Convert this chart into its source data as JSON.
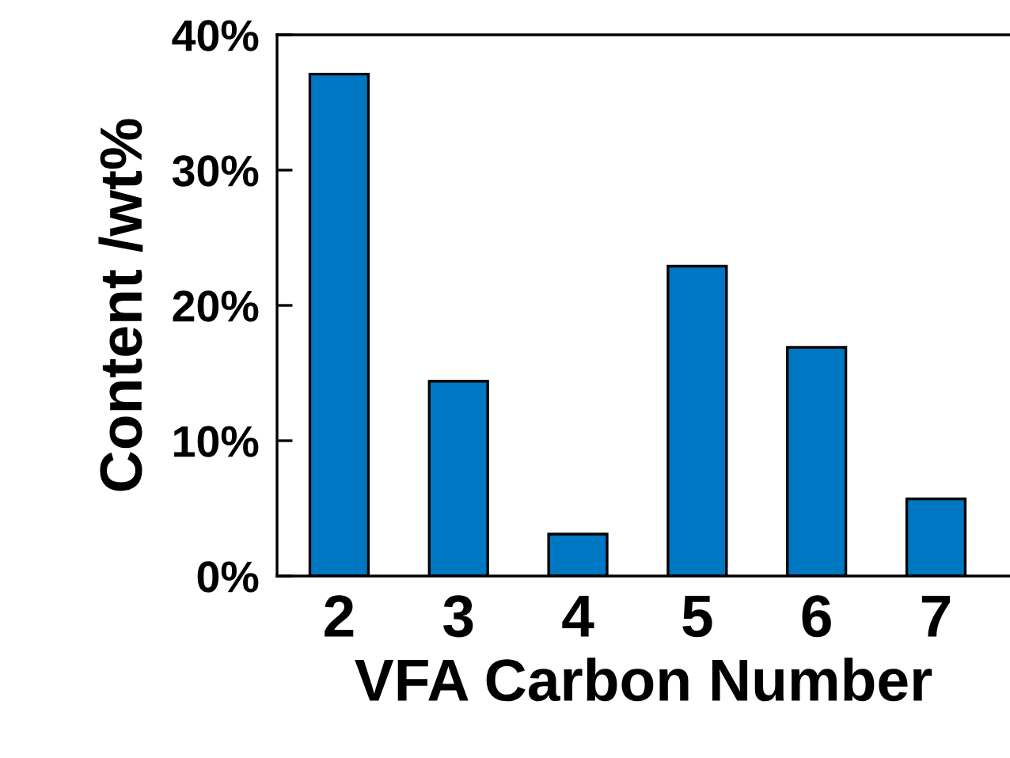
{
  "chart_data": {
    "type": "bar",
    "xlabel": "VFA Carbon Number",
    "ylabel": "Content /wt%",
    "categories": [
      "2",
      "3",
      "4",
      "5",
      "6",
      "7"
    ],
    "values": [
      37.1,
      14.4,
      3.1,
      22.9,
      16.9,
      5.7
    ],
    "color": "#0077c2",
    "ylim": [
      0,
      40
    ],
    "yticks": [
      {
        "value": 0,
        "label": "0%"
      },
      {
        "value": 10,
        "label": "10%"
      },
      {
        "value": 20,
        "label": "20%"
      },
      {
        "value": 30,
        "label": "30%"
      },
      {
        "value": 40,
        "label": "40%"
      }
    ],
    "grid": false,
    "legend": false
  }
}
